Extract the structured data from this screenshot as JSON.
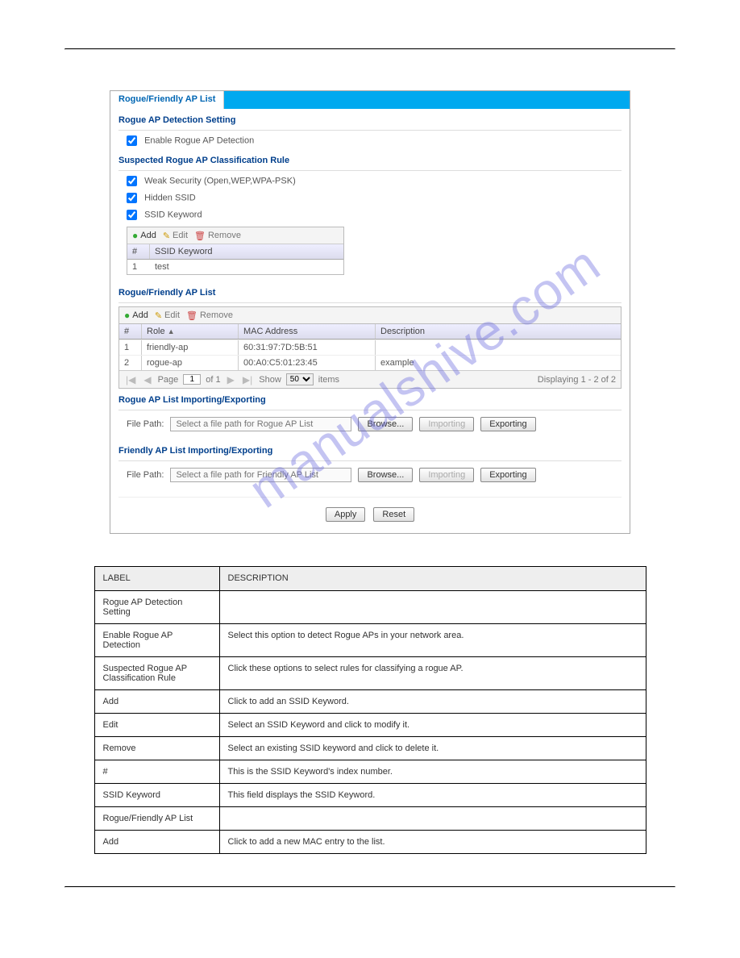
{
  "watermark": "manualshive.com",
  "tab": {
    "title": "Rogue/Friendly AP List"
  },
  "sections": {
    "detection_title": "Rogue AP Detection Setting",
    "enable_label": "Enable Rogue AP Detection",
    "classification_title": "Suspected Rogue AP Classification Rule",
    "weak_label": "Weak Security (Open,WEP,WPA-PSK)",
    "hidden_label": "Hidden SSID",
    "keyword_label": "SSID Keyword",
    "list_title": "Rogue/Friendly AP List",
    "rogue_import_title": "Rogue AP List Importing/Exporting",
    "friendly_import_title": "Friendly AP List Importing/Exporting"
  },
  "toolbar": {
    "add": "Add",
    "edit": "Edit",
    "remove": "Remove"
  },
  "keyword_table": {
    "col_num": "#",
    "col_keyword": "SSID Keyword",
    "rows": [
      {
        "n": "1",
        "kw": "test"
      }
    ]
  },
  "ap_table": {
    "col_num": "#",
    "col_role": "Role",
    "col_mac": "MAC Address",
    "col_desc": "Description",
    "rows": [
      {
        "n": "1",
        "role": "friendly-ap",
        "mac": "60:31:97:7D:5B:51",
        "desc": ""
      },
      {
        "n": "2",
        "role": "rogue-ap",
        "mac": "00:A0:C5:01:23:45",
        "desc": "example"
      }
    ]
  },
  "pager": {
    "page_label": "Page",
    "page_value": "1",
    "of_label": "of 1",
    "show_label": "Show",
    "show_value": "50",
    "items_label": "items",
    "displaying": "Displaying 1 - 2 of 2"
  },
  "file": {
    "label": "File Path:",
    "rogue_placeholder": "Select a file path for Rogue AP List",
    "friendly_placeholder": "Select a file path for Friendly AP List",
    "browse": "Browse...",
    "importing": "Importing",
    "exporting": "Exporting"
  },
  "buttons": {
    "apply": "Apply",
    "reset": "Reset"
  },
  "desc_table": {
    "header_label": "LABEL",
    "header_desc": "DESCRIPTION",
    "rows": [
      {
        "l": "Rogue AP Detection Setting",
        "d": ""
      },
      {
        "l": "Enable Rogue AP Detection",
        "d": "Select this option to detect Rogue APs in your network area."
      },
      {
        "l": "Suspected Rogue AP Classification Rule",
        "d": "Click these options to select rules for classifying a rogue AP."
      },
      {
        "l": "Add",
        "d": "Click to add an SSID Keyword."
      },
      {
        "l": "Edit",
        "d": "Select an SSID Keyword and click to modify it."
      },
      {
        "l": "Remove",
        "d": "Select an existing SSID keyword and click to delete it."
      },
      {
        "l": "#",
        "d": "This is the SSID Keyword's index number."
      },
      {
        "l": "SSID Keyword",
        "d": "This field displays the SSID Keyword."
      },
      {
        "l": "Rogue/Friendly AP List",
        "d": ""
      },
      {
        "l": "Add",
        "d": "Click to add a new MAC entry to the list."
      }
    ]
  }
}
